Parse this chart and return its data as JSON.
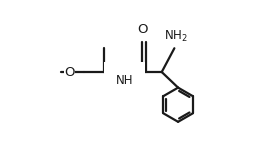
{
  "bg_color": "#ffffff",
  "line_color": "#1a1a1a",
  "line_width": 1.6,
  "font_size": 8.5,
  "figsize": [
    2.67,
    1.5
  ],
  "dpi": 100,
  "xlim": [
    0.0,
    1.0
  ],
  "ylim": [
    0.0,
    1.0
  ]
}
